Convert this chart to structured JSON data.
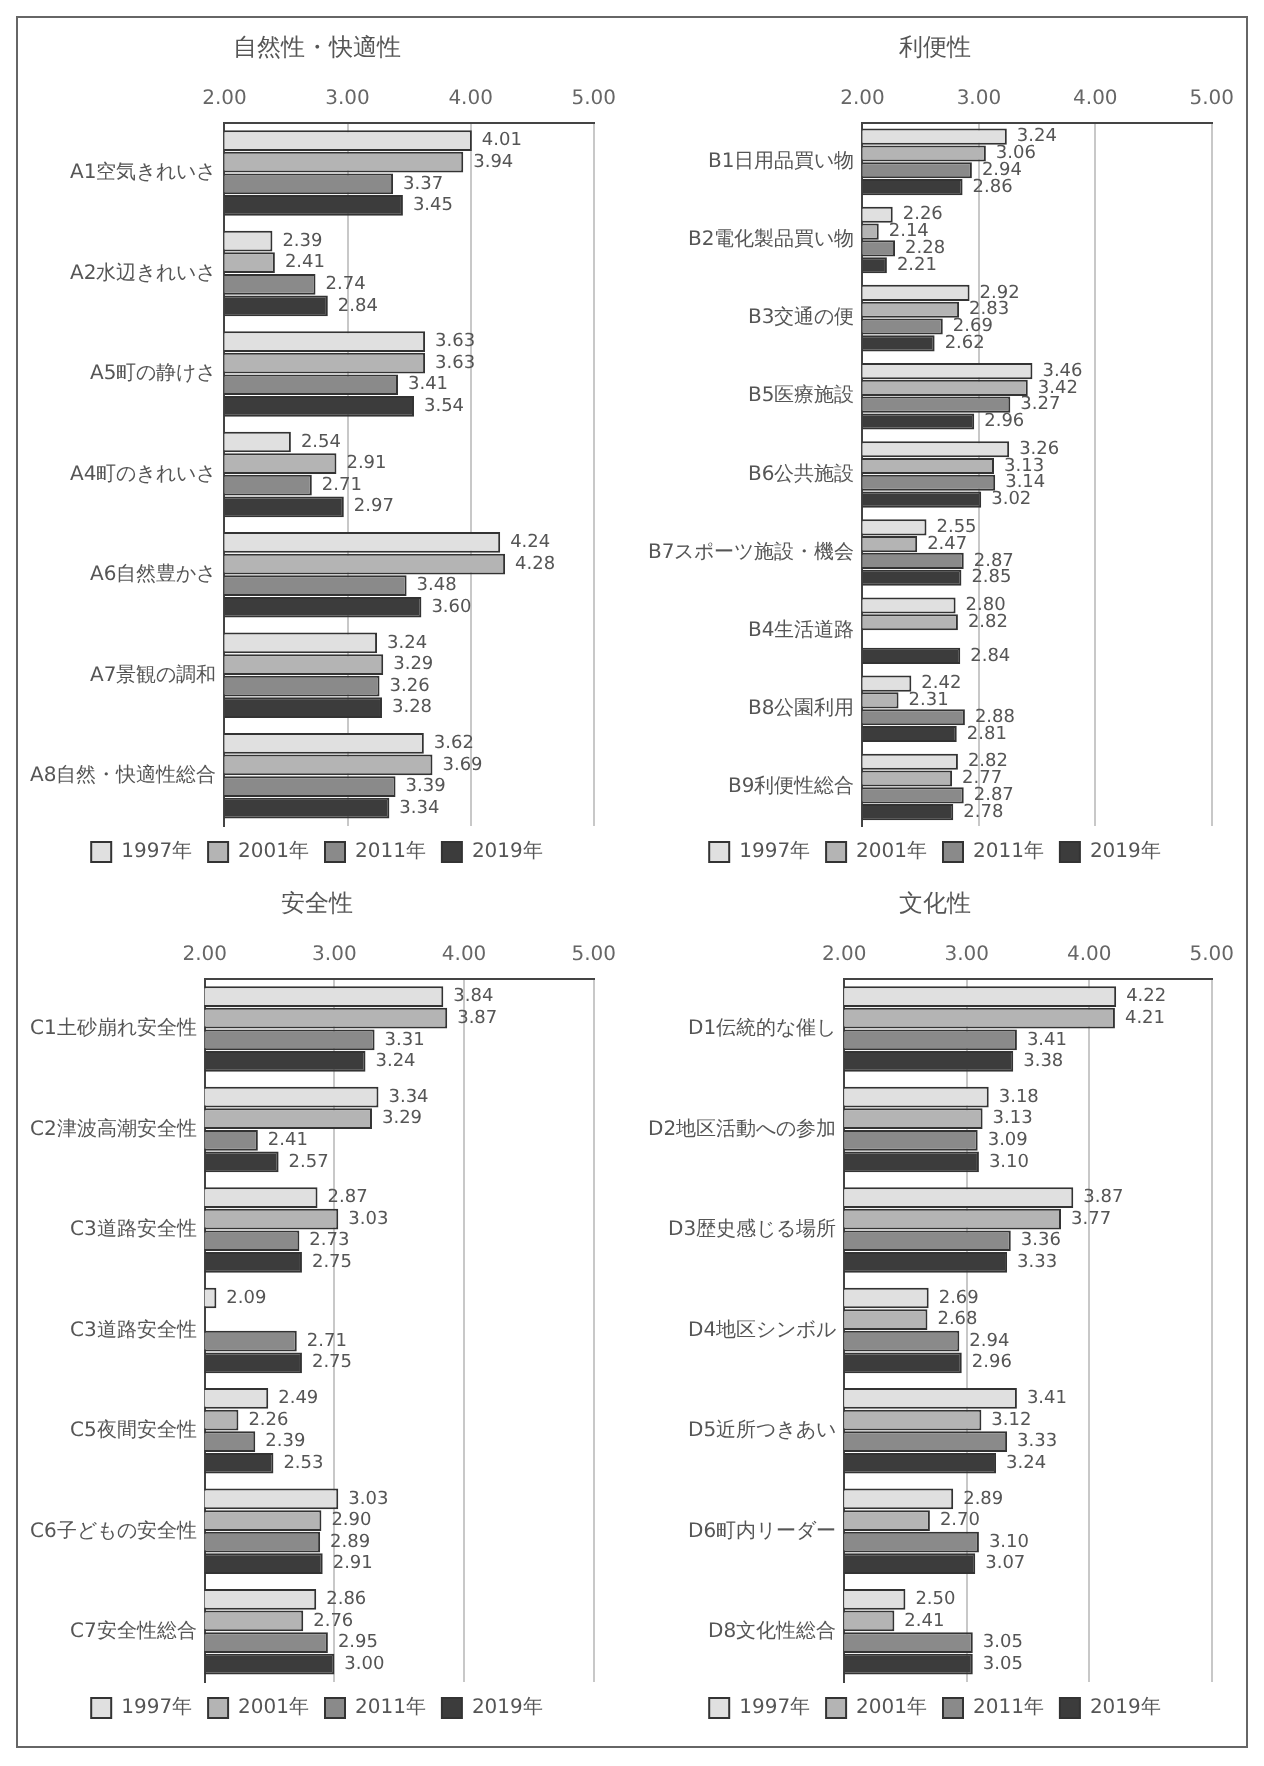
{
  "chart_data": [
    {
      "type": "bar",
      "orientation": "horizontal",
      "title": "自然性・快適性",
      "categories": [
        "A1空気きれいさ",
        "A2水辺きれいさ",
        "A5町の静けさ",
        "A4町のきれいさ",
        "A6自然豊かさ",
        "A7景観の調和",
        "A8自然・快適性総合"
      ],
      "xlim": [
        2,
        5
      ],
      "xticks": [
        {
          "value": 2,
          "label": "2.00"
        },
        {
          "value": 3,
          "label": "3.00"
        },
        {
          "value": 4,
          "label": "4.00"
        },
        {
          "value": 5,
          "label": "5.00"
        }
      ],
      "grid": "x",
      "legend": "bottom",
      "series": [
        {
          "name": "1997年",
          "color": "#e0e0e0",
          "values": [
            4.01,
            2.39,
            3.63,
            2.54,
            4.24,
            3.24,
            3.62
          ],
          "value_labels": [
            "4.01",
            "2.39",
            "3.63",
            "2.54",
            "4.24",
            "3.24",
            "3.62"
          ]
        },
        {
          "name": "2001年",
          "color": "#b4b4b4",
          "values": [
            3.94,
            2.41,
            3.63,
            2.91,
            4.28,
            3.29,
            3.69
          ],
          "value_labels": [
            "3.94",
            "2.41",
            "3.63",
            "2.91",
            "4.28",
            "3.29",
            "3.69"
          ]
        },
        {
          "name": "2011年",
          "color": "#8a8a8a",
          "values": [
            3.37,
            2.74,
            3.41,
            2.71,
            3.48,
            3.26,
            3.39
          ],
          "value_labels": [
            "3.37",
            "2.74",
            "3.41",
            "2.71",
            "3.48",
            "3.26",
            "3.39"
          ]
        },
        {
          "name": "2019年",
          "color": "#3c3c3c",
          "values": [
            3.45,
            2.84,
            3.54,
            2.97,
            3.6,
            3.28,
            3.34
          ],
          "value_labels": [
            "3.45",
            "2.84",
            "3.54",
            "2.97",
            "3.60",
            "3.28",
            "3.34"
          ]
        }
      ]
    },
    {
      "type": "bar",
      "orientation": "horizontal",
      "title": "利便性",
      "categories": [
        "B1日用品買い物",
        "B2電化製品買い物",
        "B3交通の便",
        "B5医療施設",
        "B6公共施設",
        "B7スポーツ施設・機会",
        "B4生活道路",
        "B8公園利用",
        "B9利便性総合"
      ],
      "xlim": [
        2,
        5
      ],
      "xticks": [
        {
          "value": 2,
          "label": "2.00"
        },
        {
          "value": 3,
          "label": "3.00"
        },
        {
          "value": 4,
          "label": "4.00"
        },
        {
          "value": 5,
          "label": "5.00"
        }
      ],
      "grid": "x",
      "legend": "bottom",
      "series": [
        {
          "name": "1997年",
          "color": "#e0e0e0",
          "values": [
            3.24,
            2.26,
            2.92,
            3.46,
            3.26,
            2.55,
            2.8,
            2.42,
            2.82
          ],
          "value_labels": [
            "3.24",
            "2.26",
            "2.92",
            "3.46",
            "3.26",
            "2.55",
            "2.80",
            "2.42",
            "2.82"
          ]
        },
        {
          "name": "2001年",
          "color": "#b4b4b4",
          "values": [
            3.06,
            2.14,
            2.83,
            3.42,
            3.13,
            2.47,
            2.82,
            2.31,
            2.77
          ],
          "value_labels": [
            "3.06",
            "2.14",
            "2.83",
            "3.42",
            "3.13",
            "2.47",
            "2.82",
            "2.31",
            "2.77"
          ]
        },
        {
          "name": "2011年",
          "color": "#8a8a8a",
          "values": [
            2.94,
            2.28,
            2.69,
            3.27,
            3.14,
            2.87,
            null,
            2.88,
            2.87
          ],
          "value_labels": [
            "2.94",
            "2.28",
            "2.69",
            "3.27",
            "3.14",
            "2.87",
            null,
            "2.88",
            "2.87"
          ]
        },
        {
          "name": "2019年",
          "color": "#3c3c3c",
          "values": [
            2.86,
            2.21,
            2.62,
            2.96,
            3.02,
            2.85,
            2.84,
            2.81,
            2.78
          ],
          "value_labels": [
            "2.86",
            "2.21",
            "2.62",
            "2.96",
            "3.02",
            "2.85",
            "2.84",
            "2.81",
            "2.78"
          ]
        }
      ]
    },
    {
      "type": "bar",
      "orientation": "horizontal",
      "title": "安全性",
      "categories": [
        "C1土砂崩れ安全性",
        "C2津波高潮安全性",
        "C3道路安全性",
        "C3道路安全性",
        "C5夜間安全性",
        "C6子どもの安全性",
        "C7安全性総合"
      ],
      "xlim": [
        2,
        5
      ],
      "xticks": [
        {
          "value": 2,
          "label": "2.00"
        },
        {
          "value": 3,
          "label": "3.00"
        },
        {
          "value": 4,
          "label": "4.00"
        },
        {
          "value": 5,
          "label": "5.00"
        }
      ],
      "grid": "x",
      "legend": "bottom",
      "series": [
        {
          "name": "1997年",
          "color": "#e0e0e0",
          "values": [
            3.84,
            3.34,
            2.87,
            2.09,
            2.49,
            3.03,
            2.86
          ],
          "value_labels": [
            "3.84",
            "3.34",
            "2.87",
            "2.09",
            "2.49",
            "3.03",
            "2.86"
          ]
        },
        {
          "name": "2001年",
          "color": "#b4b4b4",
          "values": [
            3.87,
            3.29,
            3.03,
            null,
            2.26,
            2.9,
            2.76
          ],
          "value_labels": [
            "3.87",
            "3.29",
            "3.03",
            null,
            "2.26",
            "2.90",
            "2.76"
          ]
        },
        {
          "name": "2011年",
          "color": "#8a8a8a",
          "values": [
            3.31,
            2.41,
            2.73,
            2.71,
            2.39,
            2.89,
            2.95
          ],
          "value_labels": [
            "3.31",
            "2.41",
            "2.73",
            "2.71",
            "2.39",
            "2.89",
            "2.95"
          ]
        },
        {
          "name": "2019年",
          "color": "#3c3c3c",
          "values": [
            3.24,
            2.57,
            2.75,
            2.75,
            2.53,
            2.91,
            3.0
          ],
          "value_labels": [
            "3.24",
            "2.57",
            "2.75",
            "2.75",
            "2.53",
            "2.91",
            "3.00"
          ]
        }
      ]
    },
    {
      "type": "bar",
      "orientation": "horizontal",
      "title": "文化性",
      "categories": [
        "D1伝統的な催し",
        "D2地区活動への参加",
        "D3歴史感じる場所",
        "D4地区シンボル",
        "D5近所つきあい",
        "D6町内リーダー",
        "D8文化性総合"
      ],
      "xlim": [
        2,
        5
      ],
      "xticks": [
        {
          "value": 2,
          "label": "2.00"
        },
        {
          "value": 3,
          "label": "3.00"
        },
        {
          "value": 4,
          "label": "4.00"
        },
        {
          "value": 5,
          "label": "5.00"
        }
      ],
      "grid": "x",
      "legend": "bottom",
      "series": [
        {
          "name": "1997年",
          "color": "#e0e0e0",
          "values": [
            4.22,
            3.18,
            3.87,
            2.69,
            3.41,
            2.89,
            2.5
          ],
          "value_labels": [
            "4.22",
            "3.18",
            "3.87",
            "2.69",
            "3.41",
            "2.89",
            "2.50"
          ]
        },
        {
          "name": "2001年",
          "color": "#b4b4b4",
          "values": [
            4.21,
            3.13,
            3.77,
            2.68,
            3.12,
            2.7,
            2.41
          ],
          "value_labels": [
            "4.21",
            "3.13",
            "3.77",
            "2.68",
            "3.12",
            "2.70",
            "2.41"
          ]
        },
        {
          "name": "2011年",
          "color": "#8a8a8a",
          "values": [
            3.41,
            3.09,
            3.36,
            2.94,
            3.33,
            3.1,
            3.05
          ],
          "value_labels": [
            "3.41",
            "3.09",
            "3.36",
            "2.94",
            "3.33",
            "3.10",
            "3.05"
          ]
        },
        {
          "name": "2019年",
          "color": "#3c3c3c",
          "values": [
            3.38,
            3.1,
            3.33,
            2.96,
            3.24,
            3.07,
            3.05
          ],
          "value_labels": [
            "3.38",
            "3.10",
            "3.33",
            "2.96",
            "3.24",
            "3.07",
            "3.05"
          ]
        }
      ]
    }
  ]
}
